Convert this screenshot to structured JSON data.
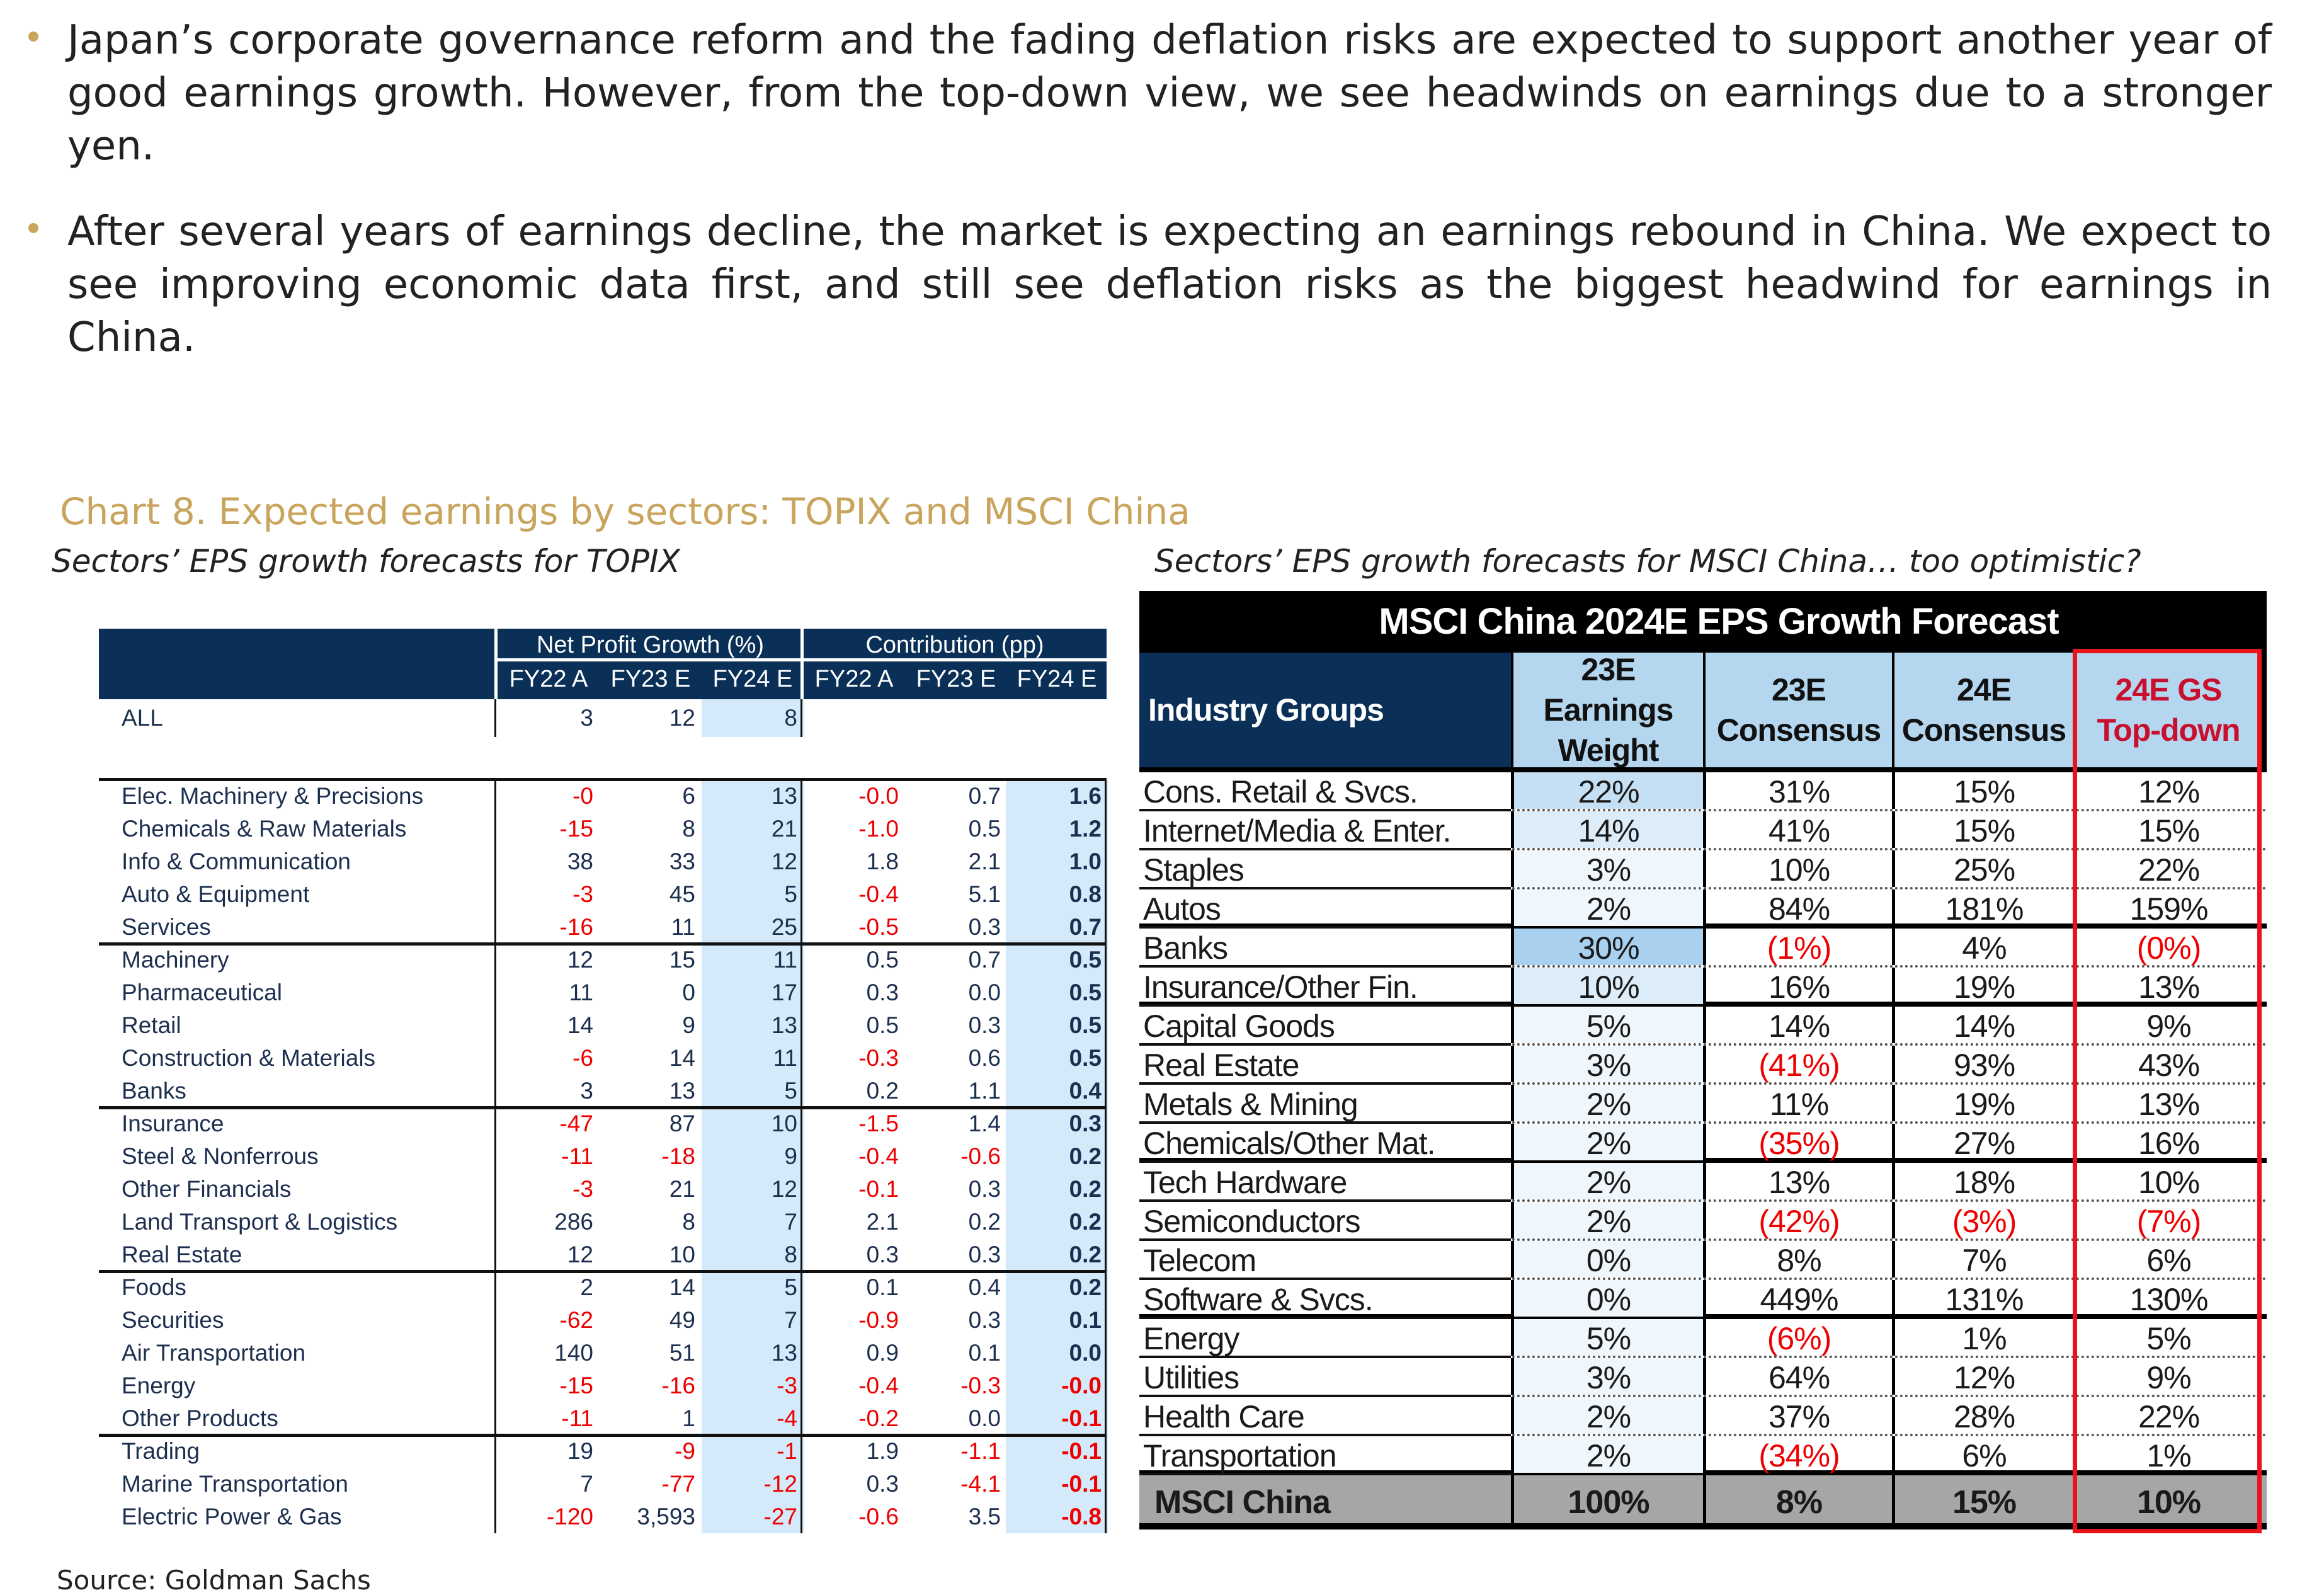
{
  "bullets": [
    "Japan’s corporate governance reform and the fading deflation risks are expected to support another year of good earnings growth. However, from the top-down view, we see headwinds on earnings due to a stronger yen.",
    "After several years of earnings decline, the market is expecting an earnings rebound in China. We expect to see improving economic data first, and still see deflation risks as the biggest headwind for earnings in China."
  ],
  "chart_title": "Chart 8. Expected earnings by sectors: TOPIX and MSCI China",
  "subtitle_left": "Sectors’ EPS growth forecasts for TOPIX",
  "subtitle_right": "Sectors’ EPS growth forecasts for MSCI China… too optimistic?",
  "source": "Source: Goldman Sachs",
  "colors": {
    "accent": "#c9a45c",
    "navy": "#0a3057",
    "negative": "#e00000",
    "highlight": "#e8141b"
  },
  "topix": {
    "group_headers": [
      "Net Profit Growth (%)",
      "Contribution (pp)"
    ],
    "columns": [
      "FY22 A",
      "FY23 E",
      "FY24 E",
      "FY22 A",
      "FY23 E",
      "FY24 E"
    ],
    "all_row": {
      "label": "ALL",
      "values": [
        "3",
        "12",
        "8"
      ]
    },
    "rows": [
      [
        "Elec. Machinery & Precisions",
        "-0",
        "6",
        "13",
        "-0.0",
        "0.7",
        "1.6"
      ],
      [
        "Chemicals & Raw Materials",
        "-15",
        "8",
        "21",
        "-1.0",
        "0.5",
        "1.2"
      ],
      [
        "Info & Communication",
        "38",
        "33",
        "12",
        "1.8",
        "2.1",
        "1.0"
      ],
      [
        "Auto & Equipment",
        "-3",
        "45",
        "5",
        "-0.4",
        "5.1",
        "0.8"
      ],
      [
        "Services",
        "-16",
        "11",
        "25",
        "-0.5",
        "0.3",
        "0.7"
      ],
      [
        "Machinery",
        "12",
        "15",
        "11",
        "0.5",
        "0.7",
        "0.5"
      ],
      [
        "Pharmaceutical",
        "11",
        "0",
        "17",
        "0.3",
        "0.0",
        "0.5"
      ],
      [
        "Retail",
        "14",
        "9",
        "13",
        "0.5",
        "0.3",
        "0.5"
      ],
      [
        "Construction & Materials",
        "-6",
        "14",
        "11",
        "-0.3",
        "0.6",
        "0.5"
      ],
      [
        "Banks",
        "3",
        "13",
        "5",
        "0.2",
        "1.1",
        "0.4"
      ],
      [
        "Insurance",
        "-47",
        "87",
        "10",
        "-1.5",
        "1.4",
        "0.3"
      ],
      [
        "Steel & Nonferrous",
        "-11",
        "-18",
        "9",
        "-0.4",
        "-0.6",
        "0.2"
      ],
      [
        "Other Financials",
        "-3",
        "21",
        "12",
        "-0.1",
        "0.3",
        "0.2"
      ],
      [
        "Land Transport & Logistics",
        "286",
        "8",
        "7",
        "2.1",
        "0.2",
        "0.2"
      ],
      [
        "Real Estate",
        "12",
        "10",
        "8",
        "0.3",
        "0.3",
        "0.2"
      ],
      [
        "Foods",
        "2",
        "14",
        "5",
        "0.1",
        "0.4",
        "0.2"
      ],
      [
        "Securities",
        "-62",
        "49",
        "7",
        "-0.9",
        "0.3",
        "0.1"
      ],
      [
        "Air Transportation",
        "140",
        "51",
        "13",
        "0.9",
        "0.1",
        "0.0"
      ],
      [
        "Energy",
        "-15",
        "-16",
        "-3",
        "-0.4",
        "-0.3",
        "-0.0"
      ],
      [
        "Other Products",
        "-11",
        "1",
        "-4",
        "-0.2",
        "0.0",
        "-0.1"
      ],
      [
        "Trading",
        "19",
        "-9",
        "-1",
        "1.9",
        "-1.1",
        "-0.1"
      ],
      [
        "Marine Transportation",
        "7",
        "-77",
        "-12",
        "0.3",
        "-4.1",
        "-0.1"
      ],
      [
        "Electric Power & Gas",
        "-120",
        "3,593",
        "-27",
        "-0.6",
        "3.5",
        "-0.8"
      ]
    ]
  },
  "msci": {
    "title": "MSCI China 2024E EPS Growth Forecast",
    "columns": [
      "Industry Groups",
      "23E Earnings Weight",
      "23E Consensus",
      "24E Consensus",
      "24E GS Top-down"
    ],
    "rows": [
      [
        "Cons. Retail & Svcs.",
        "22%",
        "31%",
        "15%",
        "12%"
      ],
      [
        "Internet/Media & Enter.",
        "14%",
        "41%",
        "15%",
        "15%"
      ],
      [
        "Staples",
        "3%",
        "10%",
        "25%",
        "22%"
      ],
      [
        "Autos",
        "2%",
        "84%",
        "181%",
        "159%"
      ],
      [
        "Banks",
        "30%",
        "(1%)",
        "4%",
        "(0%)"
      ],
      [
        "Insurance/Other Fin.",
        "10%",
        "16%",
        "19%",
        "13%"
      ],
      [
        "Capital Goods",
        "5%",
        "14%",
        "14%",
        "9%"
      ],
      [
        "Real Estate",
        "3%",
        "(41%)",
        "93%",
        "43%"
      ],
      [
        "Metals & Mining",
        "2%",
        "11%",
        "19%",
        "13%"
      ],
      [
        "Chemicals/Other Mat.",
        "2%",
        "(35%)",
        "27%",
        "16%"
      ],
      [
        "Tech Hardware",
        "2%",
        "13%",
        "18%",
        "10%"
      ],
      [
        "Semiconductors",
        "2%",
        "(42%)",
        "(3%)",
        "(7%)"
      ],
      [
        "Telecom",
        "0%",
        "8%",
        "7%",
        "6%"
      ],
      [
        "Software & Svcs.",
        "0%",
        "449%",
        "131%",
        "130%"
      ],
      [
        "Energy",
        "5%",
        "(6%)",
        "1%",
        "5%"
      ],
      [
        "Utilities",
        "3%",
        "64%",
        "12%",
        "9%"
      ],
      [
        "Health Care",
        "2%",
        "37%",
        "28%",
        "22%"
      ],
      [
        "Transportation",
        "2%",
        "(34%)",
        "6%",
        "1%"
      ]
    ],
    "total": [
      "MSCI China",
      "100%",
      "8%",
      "15%",
      "10%"
    ]
  }
}
